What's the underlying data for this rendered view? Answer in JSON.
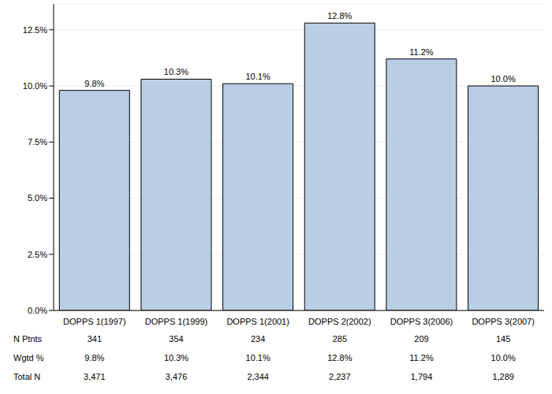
{
  "chart_data": {
    "type": "bar",
    "categories": [
      "DOPPS 1(1997)",
      "DOPPS 1(1999)",
      "DOPPS 1(2001)",
      "DOPPS 2(2002)",
      "DOPPS 3(2006)",
      "DOPPS 3(2007)"
    ],
    "values": [
      9.8,
      10.3,
      10.1,
      12.8,
      11.2,
      10.0
    ],
    "value_labels": [
      "9.8%",
      "10.3%",
      "10.1%",
      "12.8%",
      "11.2%",
      "10.0%"
    ],
    "data_labels": true,
    "color": "#b9cde5",
    "ylim": [
      0,
      13.65
    ],
    "yticks": [
      {
        "value": 0,
        "label": "0.0%"
      },
      {
        "value": 2.5,
        "label": "2.5%"
      },
      {
        "value": 5,
        "label": "5.0%"
      },
      {
        "value": 7.5,
        "label": "7.5%"
      },
      {
        "value": 10,
        "label": "10.0%"
      },
      {
        "value": 12.5,
        "label": "12.5%"
      }
    ],
    "grid": true,
    "table": {
      "rows": [
        {
          "label": "N Ptnts",
          "values": [
            "341",
            "354",
            "234",
            "285",
            "209",
            "145"
          ]
        },
        {
          "label": "Wgtd %",
          "values": [
            "9.8%",
            "10.3%",
            "10.1%",
            "12.8%",
            "11.2%",
            "10.0%"
          ]
        },
        {
          "label": "Total N",
          "values": [
            "3,471",
            "3,476",
            "2,344",
            "2,237",
            "1,794",
            "1,289"
          ]
        }
      ]
    }
  }
}
